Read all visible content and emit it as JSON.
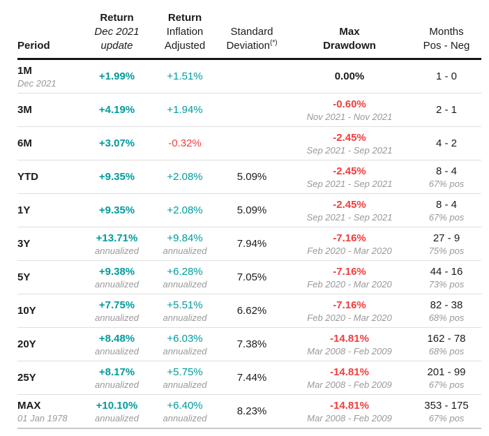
{
  "colors": {
    "positive_teal": "#009B9B",
    "negative_red": "#F23D3D",
    "muted_gray": "#999999",
    "ink_black": "#1B1B1B",
    "row_divider": "#DEDEDE",
    "header_border": "#141414",
    "bottom_border": "#C9C9C9"
  },
  "chart_data": {
    "type": "table",
    "columns": [
      {
        "lines": [
          "Period"
        ]
      },
      {
        "lines": [
          "Return",
          "Dec 2021",
          "update"
        ]
      },
      {
        "lines": [
          "Return",
          "Inflation",
          "Adjusted"
        ]
      },
      {
        "lines": [
          "Standard",
          "Deviation"
        ],
        "sup": "(*)"
      },
      {
        "lines": [
          "Max",
          "Drawdown"
        ]
      },
      {
        "lines": [
          "Months",
          "Pos - Neg"
        ]
      }
    ],
    "rows": [
      {
        "period": "1M",
        "period_sub": "Dec 2021",
        "ret": "+1.99%",
        "ret_sub": "",
        "infl": "+1.51%",
        "infl_sub": "",
        "stdev": "",
        "dd": "0.00%",
        "dd_sub": "",
        "months": "1 - 0",
        "months_sub": ""
      },
      {
        "period": "3M",
        "period_sub": "",
        "ret": "+4.19%",
        "ret_sub": "",
        "infl": "+1.94%",
        "infl_sub": "",
        "stdev": "",
        "dd": "-0.60%",
        "dd_sub": "Nov 2021 - Nov 2021",
        "months": "2 - 1",
        "months_sub": ""
      },
      {
        "period": "6M",
        "period_sub": "",
        "ret": "+3.07%",
        "ret_sub": "",
        "infl": "-0.32%",
        "infl_sub": "",
        "stdev": "",
        "dd": "-2.45%",
        "dd_sub": "Sep 2021 - Sep 2021",
        "months": "4 - 2",
        "months_sub": ""
      },
      {
        "period": "YTD",
        "period_sub": "",
        "ret": "+9.35%",
        "ret_sub": "",
        "infl": "+2.08%",
        "infl_sub": "",
        "stdev": "5.09%",
        "dd": "-2.45%",
        "dd_sub": "Sep 2021 - Sep 2021",
        "months": "8 - 4",
        "months_sub": "67% pos"
      },
      {
        "period": "1Y",
        "period_sub": "",
        "ret": "+9.35%",
        "ret_sub": "",
        "infl": "+2.08%",
        "infl_sub": "",
        "stdev": "5.09%",
        "dd": "-2.45%",
        "dd_sub": "Sep 2021 - Sep 2021",
        "months": "8 - 4",
        "months_sub": "67% pos"
      },
      {
        "period": "3Y",
        "period_sub": "",
        "ret": "+13.71%",
        "ret_sub": "annualized",
        "infl": "+9.84%",
        "infl_sub": "annualized",
        "stdev": "7.94%",
        "dd": "-7.16%",
        "dd_sub": "Feb 2020 - Mar 2020",
        "months": "27 - 9",
        "months_sub": "75% pos"
      },
      {
        "period": "5Y",
        "period_sub": "",
        "ret": "+9.38%",
        "ret_sub": "annualized",
        "infl": "+6.28%",
        "infl_sub": "annualized",
        "stdev": "7.05%",
        "dd": "-7.16%",
        "dd_sub": "Feb 2020 - Mar 2020",
        "months": "44 - 16",
        "months_sub": "73% pos"
      },
      {
        "period": "10Y",
        "period_sub": "",
        "ret": "+7.75%",
        "ret_sub": "annualized",
        "infl": "+5.51%",
        "infl_sub": "annualized",
        "stdev": "6.62%",
        "dd": "-7.16%",
        "dd_sub": "Feb 2020 - Mar 2020",
        "months": "82 - 38",
        "months_sub": "68% pos"
      },
      {
        "period": "20Y",
        "period_sub": "",
        "ret": "+8.48%",
        "ret_sub": "annualized",
        "infl": "+6.03%",
        "infl_sub": "annualized",
        "stdev": "7.38%",
        "dd": "-14.81%",
        "dd_sub": "Mar 2008 - Feb 2009",
        "months": "162 - 78",
        "months_sub": "68% pos"
      },
      {
        "period": "25Y",
        "period_sub": "",
        "ret": "+8.17%",
        "ret_sub": "annualized",
        "infl": "+5.75%",
        "infl_sub": "annualized",
        "stdev": "7.44%",
        "dd": "-14.81%",
        "dd_sub": "Mar 2008 - Feb 2009",
        "months": "201 - 99",
        "months_sub": "67% pos"
      },
      {
        "period": "MAX",
        "period_sub": "01 Jan 1978",
        "ret": "+10.10%",
        "ret_sub": "annualized",
        "infl": "+6.40%",
        "infl_sub": "annualized",
        "stdev": "8.23%",
        "dd": "-14.81%",
        "dd_sub": "Mar 2008 - Feb 2009",
        "months": "353 - 175",
        "months_sub": "67% pos"
      }
    ]
  }
}
